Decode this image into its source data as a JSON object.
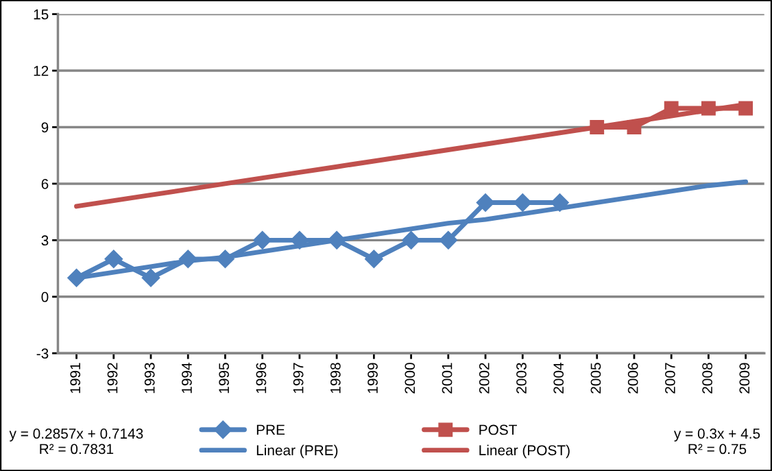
{
  "chart_data": {
    "type": "line",
    "categories": [
      "1991",
      "1992",
      "1993",
      "1994",
      "1995",
      "1996",
      "1997",
      "1998",
      "1999",
      "2000",
      "2001",
      "2002",
      "2003",
      "2004",
      "2005",
      "2006",
      "2007",
      "2008",
      "2009"
    ],
    "series": [
      {
        "name": "PRE",
        "color": "#4f81bd",
        "marker": "diamond",
        "values": [
          1,
          2,
          1,
          2,
          2,
          3,
          3,
          3,
          2,
          3,
          3,
          5,
          5,
          5,
          null,
          null,
          null,
          null,
          null
        ]
      },
      {
        "name": "POST",
        "color": "#c0504d",
        "marker": "square",
        "values": [
          null,
          null,
          null,
          null,
          null,
          null,
          null,
          null,
          null,
          null,
          null,
          null,
          null,
          null,
          9,
          9,
          10,
          10,
          10
        ]
      },
      {
        "name": "Linear (PRE)",
        "color": "#4f81bd",
        "marker": "none",
        "values": [
          1.0,
          1.3,
          1.6,
          1.9,
          2.1,
          2.4,
          2.7,
          3.0,
          3.3,
          3.6,
          3.9,
          4.1,
          4.4,
          4.7,
          5.0,
          5.3,
          5.6,
          5.9,
          6.1
        ]
      },
      {
        "name": "Linear (POST)",
        "color": "#c0504d",
        "marker": "none",
        "values": [
          4.8,
          5.1,
          5.4,
          5.7,
          6.0,
          6.3,
          6.6,
          6.9,
          7.2,
          7.5,
          7.8,
          8.1,
          8.4,
          8.7,
          9.0,
          9.3,
          9.6,
          9.9,
          10.2
        ]
      }
    ],
    "ylim": [
      -3,
      15
    ],
    "yticks": [
      -3,
      0,
      3,
      6,
      9,
      12,
      15
    ],
    "grid": "y",
    "legend": "bottom",
    "annotations": [
      "y = 0.2857x + 0.7143\nR² = 0.7831",
      "y = 0.3x + 4.5\nR² = 0.75"
    ]
  }
}
